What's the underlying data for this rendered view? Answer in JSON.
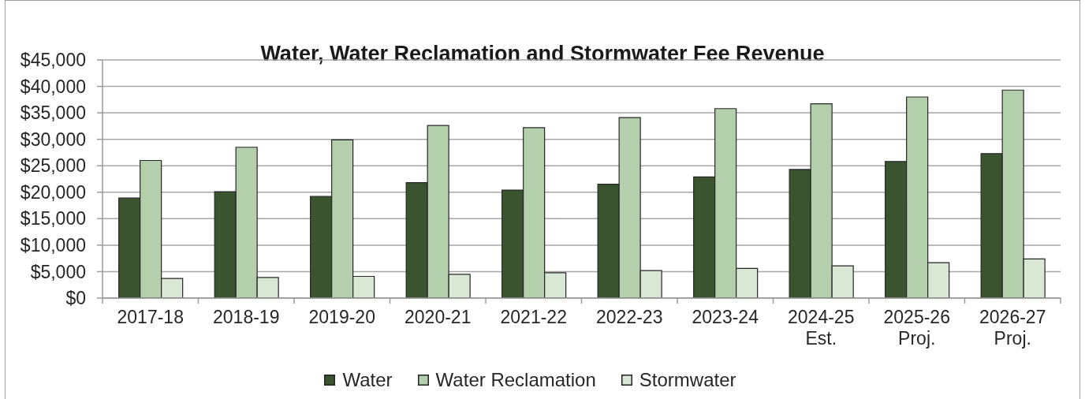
{
  "chart_data": {
    "type": "bar",
    "title": "Water, Water Reclamation and Stormwater Fee Revenue",
    "categories": [
      "2017-18",
      "2018-19",
      "2019-20",
      "2020-21",
      "2021-22",
      "2022-23",
      "2023-24",
      "2024-25\nEst.",
      "2025-26\nProj.",
      "2026-27\nProj."
    ],
    "series": [
      {
        "name": "Water",
        "color": "#3b5430",
        "values": [
          18900,
          20100,
          19200,
          21800,
          20400,
          21500,
          22900,
          24300,
          25800,
          27300
        ]
      },
      {
        "name": "Water Reclamation",
        "color": "#b3cfab",
        "values": [
          26000,
          28500,
          29900,
          32600,
          32200,
          34100,
          35800,
          36700,
          38000,
          39300
        ]
      },
      {
        "name": "Stormwater",
        "color": "#d9e8d4",
        "values": [
          3700,
          3900,
          4100,
          4500,
          4800,
          5200,
          5600,
          6100,
          6700,
          7400
        ]
      }
    ],
    "ylim": [
      0,
      45000
    ],
    "yticks": [
      {
        "value": 0,
        "label": "$0"
      },
      {
        "value": 5000,
        "label": "$5,000"
      },
      {
        "value": 10000,
        "label": "$10,000"
      },
      {
        "value": 15000,
        "label": "$15,000"
      },
      {
        "value": 20000,
        "label": "$20,000"
      },
      {
        "value": 25000,
        "label": "$25,000"
      },
      {
        "value": 30000,
        "label": "$30,000"
      },
      {
        "value": 35000,
        "label": "$35,000"
      },
      {
        "value": 40000,
        "label": "$40,000"
      },
      {
        "value": 45000,
        "label": "$45,000"
      }
    ],
    "grid": "y",
    "legend": "bottom"
  }
}
